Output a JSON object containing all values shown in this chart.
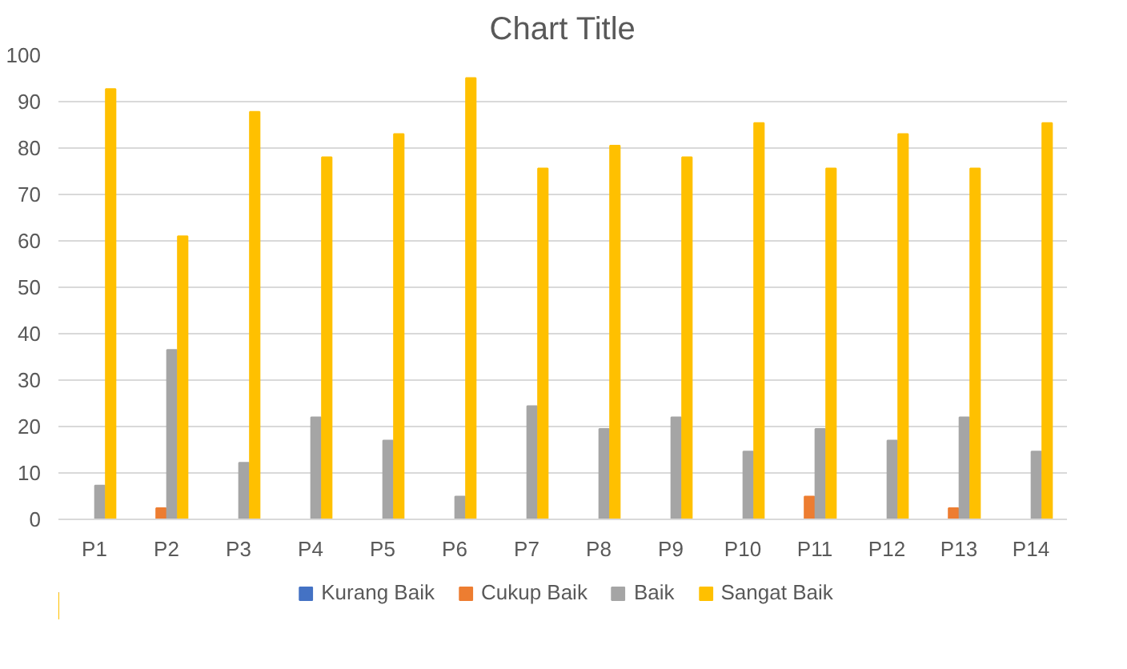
{
  "chart_data": {
    "type": "bar",
    "title": "Chart Title",
    "categories": [
      "P1",
      "P2",
      "P3",
      "P4",
      "P5",
      "P6",
      "P7",
      "P8",
      "P9",
      "P10",
      "P11",
      "P12",
      "P13",
      "P14"
    ],
    "series": [
      {
        "name": "Kurang Baik",
        "color": "#4472c4",
        "values": [
          0,
          0,
          0,
          0,
          0,
          0,
          0,
          0,
          0,
          0,
          0,
          0,
          0,
          0
        ]
      },
      {
        "name": "Cukup Baik",
        "color": "#ed7d31",
        "values": [
          0,
          2.4,
          0,
          0,
          0,
          0,
          0,
          0,
          0,
          0,
          4.9,
          0,
          2.4,
          0
        ]
      },
      {
        "name": "Baik",
        "color": "#a5a5a5",
        "values": [
          7.3,
          36.5,
          12.2,
          22,
          17,
          4.9,
          24.4,
          19.5,
          22,
          14.6,
          19.5,
          17,
          22,
          14.6
        ]
      },
      {
        "name": "Sangat Baik",
        "color": "#ffc000",
        "values": [
          92.7,
          61,
          87.8,
          78,
          83,
          95.1,
          75.6,
          80.5,
          78,
          85.4,
          75.6,
          83,
          75.6,
          85.4
        ]
      }
    ],
    "ylim": [
      0,
      100
    ],
    "yticks": [
      0,
      10,
      20,
      30,
      40,
      50,
      60,
      70,
      80,
      90,
      100
    ],
    "grid": "y",
    "legend": "bottom"
  }
}
